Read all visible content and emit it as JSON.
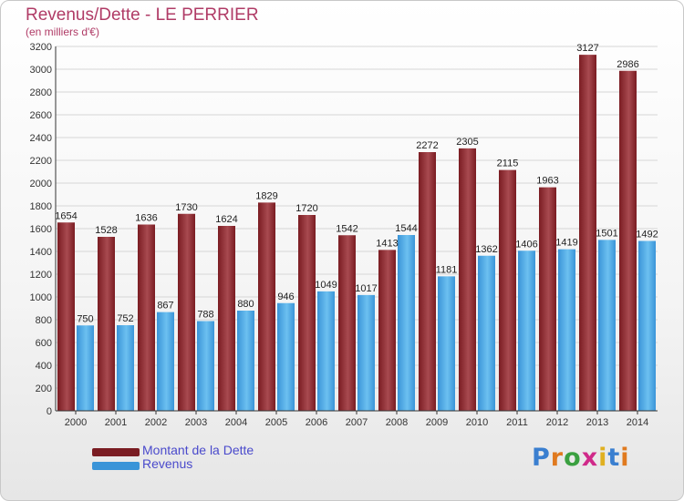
{
  "title": "Revenus/Dette - LE PERRIER",
  "subtitle": "(en milliers d'€)",
  "colors": {
    "debt": "#7a1c22",
    "debt_light": "#a84a50",
    "revenue": "#3a94d8",
    "revenue_light": "#6cc0f0",
    "title": "#b03b66",
    "legend_text": "#4a4acc"
  },
  "legend": {
    "debt_label": "Montant de la Dette",
    "revenue_label": "Revenus"
  },
  "logo": {
    "letters": [
      "P",
      "r",
      "o",
      "x",
      "i",
      "t",
      "i"
    ],
    "colors": [
      "#3a7fd0",
      "#e07a1f",
      "#3aa040",
      "#d02a8a",
      "#e0b020",
      "#3a7fd0",
      "#e07a1f"
    ]
  },
  "chart_data": {
    "type": "bar",
    "categories": [
      "2000",
      "2001",
      "2002",
      "2003",
      "2004",
      "2005",
      "2006",
      "2007",
      "2008",
      "2009",
      "2010",
      "2011",
      "2012",
      "2013",
      "2014"
    ],
    "series": [
      {
        "name": "Montant de la Dette",
        "values": [
          1654,
          1528,
          1636,
          1730,
          1624,
          1829,
          1720,
          1542,
          1413,
          2272,
          2305,
          2115,
          1963,
          3127,
          2986
        ]
      },
      {
        "name": "Revenus",
        "values": [
          750,
          752,
          867,
          788,
          880,
          946,
          1049,
          1017,
          1544,
          1181,
          1362,
          1406,
          1419,
          1501,
          1492
        ]
      }
    ],
    "ylim": [
      0,
      3200
    ],
    "yticks": [
      0,
      200,
      400,
      600,
      800,
      1000,
      1200,
      1400,
      1600,
      1800,
      2000,
      2200,
      2400,
      2600,
      2800,
      3000,
      3200
    ],
    "grid": true,
    "legend_position": "bottom-left"
  }
}
